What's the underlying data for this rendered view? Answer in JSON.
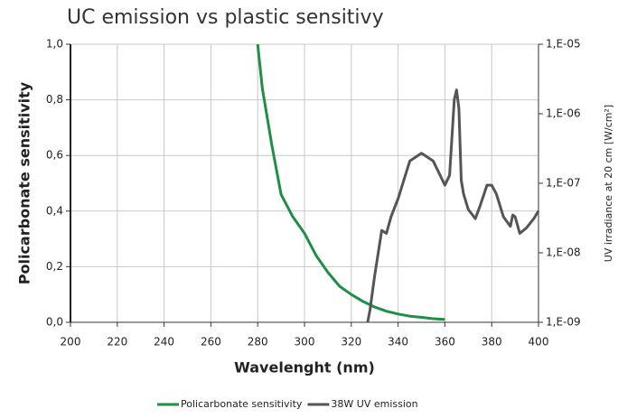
{
  "chart_data": {
    "type": "line",
    "title": "UC emission vs plastic sensitivy",
    "x_label": "Wavelenght (nm)",
    "y_label": "Policarbonate sensitivity",
    "y2_label": "UV irradiance at 20 cm [W/cm²]",
    "xlim": [
      200,
      400
    ],
    "xticks": [
      200,
      220,
      240,
      260,
      280,
      300,
      320,
      340,
      360,
      380,
      400
    ],
    "ylim": [
      0,
      1
    ],
    "yticks": [
      {
        "value": 0,
        "label": "0,0"
      },
      {
        "value": 0.2,
        "label": "0,2"
      },
      {
        "value": 0.4,
        "label": "0,4"
      },
      {
        "value": 0.6,
        "label": "0,6"
      },
      {
        "value": 0.8,
        "label": "0,8"
      },
      {
        "value": 1,
        "label": "1,0"
      }
    ],
    "y2lim": [
      1e-09,
      1e-05
    ],
    "y2log": true,
    "y2ticks": [
      {
        "value": 1e-09,
        "label": "1,E-09"
      },
      {
        "value": 1e-08,
        "label": "1,E-08"
      },
      {
        "value": 1e-07,
        "label": "1,E-07"
      },
      {
        "value": 1e-06,
        "label": "1,E-06"
      },
      {
        "value": 1e-05,
        "label": "1,E-05"
      }
    ],
    "grid": true,
    "legend": "bottom",
    "series": [
      {
        "name": "Policarbonate sensitivity",
        "color": "#1f8f46",
        "x": [
          280,
          282,
          284,
          286,
          288,
          290,
          295,
          300,
          305,
          310,
          315,
          320,
          325,
          330,
          335,
          340,
          345,
          350,
          355,
          360
        ],
        "values": [
          1.0,
          0.84,
          0.74,
          0.64,
          0.55,
          0.46,
          0.38,
          0.32,
          0.24,
          0.18,
          0.13,
          0.1,
          0.075,
          0.055,
          0.04,
          0.03,
          0.022,
          0.018,
          0.013,
          0.01
        ]
      },
      {
        "name": "38W UV emission",
        "color": "#555555",
        "axis": "y2",
        "x": [
          327,
          328,
          330,
          333,
          335,
          337,
          340,
          345,
          350,
          355,
          360,
          362,
          364,
          365,
          366,
          367,
          368,
          370,
          373,
          375,
          378,
          380,
          382,
          385,
          388,
          389,
          390,
          392,
          395,
          398,
          400
        ],
        "values": [
          1e-09,
          1.5e-09,
          4.7e-09,
          2.1e-08,
          1.9e-08,
          3.3e-08,
          6e-08,
          2.1e-07,
          2.7e-07,
          2.1e-07,
          9.4e-08,
          1.3e-07,
          1.6e-06,
          2.2e-06,
          1.2e-06,
          1.1e-07,
          7e-08,
          4.2e-08,
          3.1e-08,
          4.7e-08,
          9.4e-08,
          9.4e-08,
          7e-08,
          3.3e-08,
          2.4e-08,
          3.5e-08,
          3.3e-08,
          1.9e-08,
          2.3e-08,
          3.1e-08,
          4e-08
        ]
      }
    ]
  }
}
